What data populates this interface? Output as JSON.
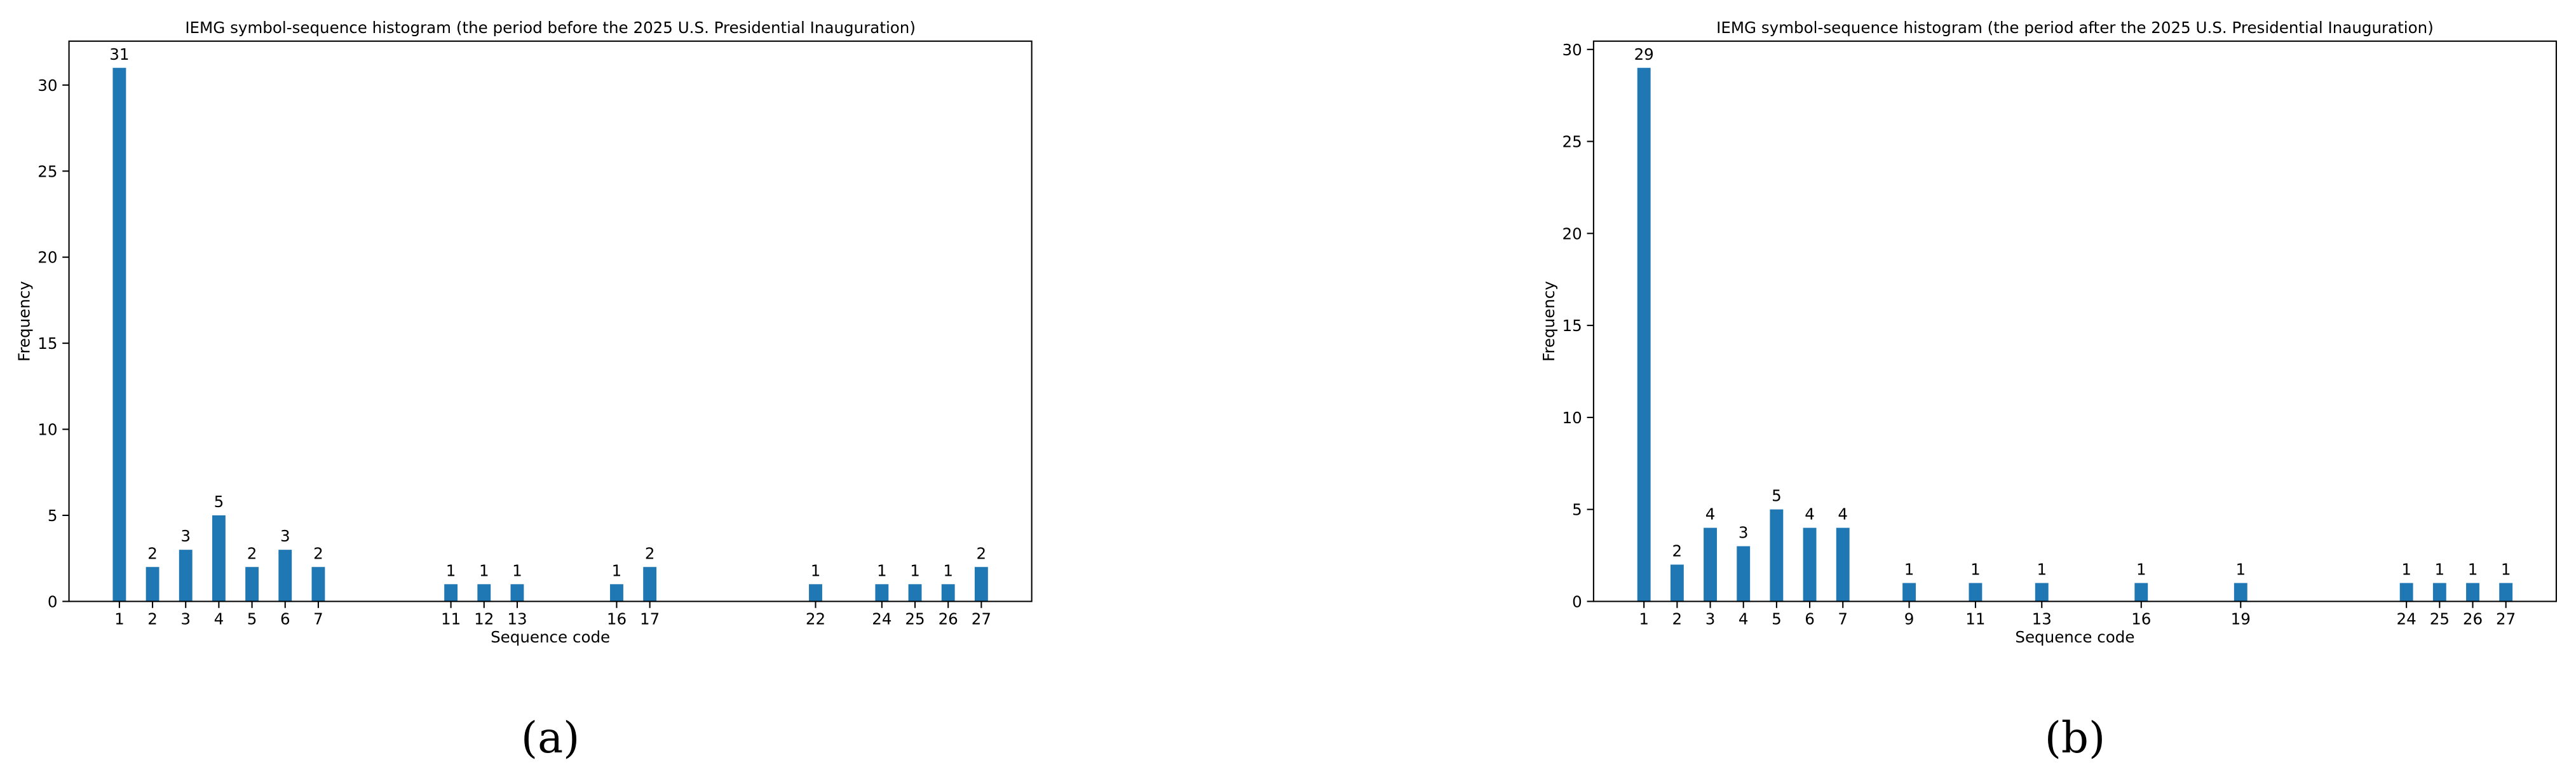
{
  "chart_data": [
    {
      "type": "bar",
      "title": "IEMG symbol-sequence histogram (the period before the 2025 U.S. Presidential Inauguration)",
      "x_label": "Sequence code",
      "y_label": "Frequency",
      "caption": "(a)",
      "x": [
        1,
        2,
        3,
        4,
        5,
        6,
        7,
        11,
        12,
        13,
        16,
        17,
        22,
        24,
        25,
        26,
        27
      ],
      "values": [
        31,
        2,
        3,
        5,
        2,
        3,
        2,
        1,
        1,
        1,
        1,
        2,
        1,
        1,
        1,
        1,
        2
      ],
      "color": "#1f77b4",
      "xlim": [
        -0.52,
        28.52
      ],
      "xticks": [
        1,
        2,
        3,
        4,
        5,
        6,
        7,
        11,
        12,
        13,
        16,
        17,
        22,
        24,
        25,
        26,
        27
      ],
      "ylim": [
        0,
        32.55
      ],
      "yticks": [
        0,
        5,
        10,
        15,
        20,
        25,
        30
      ]
    },
    {
      "type": "bar",
      "title": "IEMG symbol-sequence histogram (the period after the 2025 U.S. Presidential Inauguration)",
      "x_label": "Sequence code",
      "y_label": "Frequency",
      "caption": "(b)",
      "x": [
        1,
        2,
        3,
        4,
        5,
        6,
        7,
        9,
        11,
        13,
        16,
        19,
        24,
        25,
        26,
        27
      ],
      "values": [
        29,
        2,
        4,
        3,
        5,
        4,
        4,
        1,
        1,
        1,
        1,
        1,
        1,
        1,
        1,
        1
      ],
      "color": "#1f77b4",
      "xlim": [
        -0.52,
        28.52
      ],
      "xticks": [
        1,
        2,
        3,
        4,
        5,
        6,
        7,
        9,
        11,
        13,
        16,
        19,
        24,
        25,
        26,
        27
      ],
      "ylim": [
        0,
        30.45
      ],
      "yticks": [
        0,
        5,
        10,
        15,
        20,
        25,
        30
      ]
    }
  ]
}
